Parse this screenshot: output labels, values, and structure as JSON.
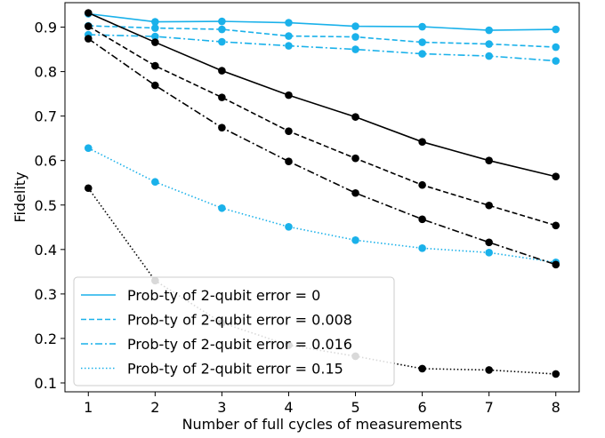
{
  "chart_data": {
    "type": "line",
    "xlabel": "Number of full cycles of measurements",
    "ylabel": "Fidelity",
    "x": [
      1,
      2,
      3,
      4,
      5,
      6,
      7,
      8
    ],
    "xlim": [
      0.65,
      8.35
    ],
    "ylim": [
      0.08,
      0.955
    ],
    "xticks": [
      1,
      2,
      3,
      4,
      5,
      6,
      7,
      8
    ],
    "yticks": [
      0.1,
      0.2,
      0.3,
      0.4,
      0.5,
      0.6,
      0.7,
      0.8,
      0.9
    ],
    "grid": false,
    "legend_position": "lower-left",
    "colors": {
      "blue": "#1ab1ea",
      "black": "#000000"
    },
    "series": [
      {
        "name": "",
        "color": "#1ab1ea",
        "dash": "solid",
        "values": [
          0.93,
          0.912,
          0.913,
          0.91,
          0.902,
          0.901,
          0.893,
          0.895
        ]
      },
      {
        "name": "",
        "color": "#1ab1ea",
        "dash": "dashed",
        "values": [
          0.903,
          0.898,
          0.895,
          0.88,
          0.878,
          0.866,
          0.862,
          0.855
        ]
      },
      {
        "name": "",
        "color": "#1ab1ea",
        "dash": "dashdot",
        "values": [
          0.883,
          0.879,
          0.867,
          0.858,
          0.85,
          0.84,
          0.835,
          0.824
        ]
      },
      {
        "name": "",
        "color": "#1ab1ea",
        "dash": "dotted",
        "values": [
          0.628,
          0.552,
          0.493,
          0.451,
          0.421,
          0.403,
          0.393,
          0.371
        ]
      },
      {
        "name": "",
        "color": "#000000",
        "dash": "solid",
        "values": [
          0.932,
          0.866,
          0.802,
          0.747,
          0.698,
          0.642,
          0.6,
          0.564
        ]
      },
      {
        "name": "",
        "color": "#000000",
        "dash": "dashed",
        "values": [
          0.902,
          0.813,
          0.742,
          0.666,
          0.605,
          0.545,
          0.499,
          0.454
        ]
      },
      {
        "name": "",
        "color": "#000000",
        "dash": "dashdot",
        "values": [
          0.874,
          0.769,
          0.674,
          0.598,
          0.527,
          0.468,
          0.416,
          0.366
        ]
      },
      {
        "name": "",
        "color": "#000000",
        "dash": "dotted",
        "values": [
          0.538,
          0.33,
          0.235,
          0.185,
          0.16,
          0.132,
          0.129,
          0.12
        ]
      }
    ],
    "legend": [
      {
        "label": "Prob-ty of 2-qubit error = 0",
        "dash": "solid",
        "color": "#1ab1ea"
      },
      {
        "label": "Prob-ty of 2-qubit error = 0.008",
        "dash": "dashed",
        "color": "#1ab1ea"
      },
      {
        "label": "Prob-ty of 2-qubit error = 0.016",
        "dash": "dashdot",
        "color": "#1ab1ea"
      },
      {
        "label": "Prob-ty of 2-qubit error = 0.15",
        "dash": "dotted",
        "color": "#1ab1ea"
      }
    ]
  }
}
